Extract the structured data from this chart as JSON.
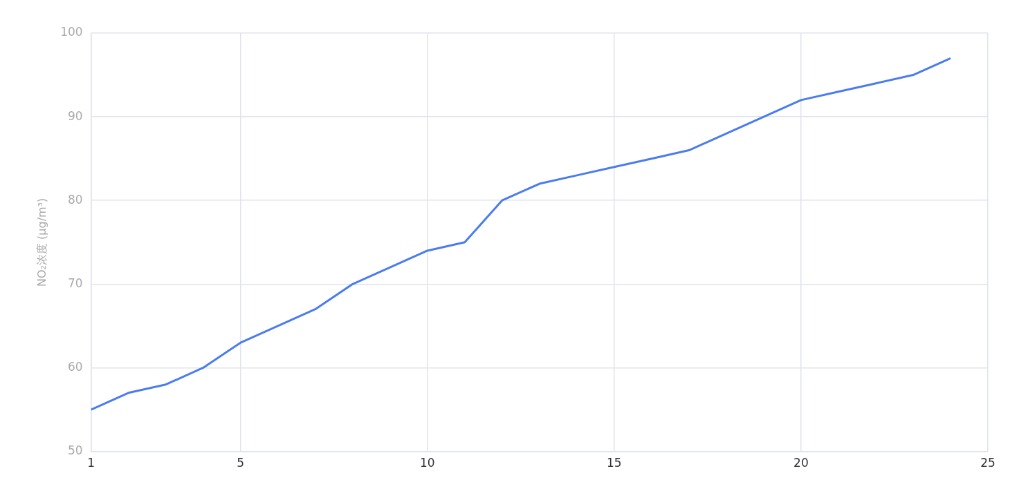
{
  "chart_data": {
    "type": "line",
    "ylabel": "NO₂浓度 (μg/m³)",
    "x": [
      1,
      2,
      3,
      4,
      5,
      6,
      7,
      8,
      9,
      10,
      11,
      12,
      13,
      14,
      15,
      16,
      17,
      18,
      19,
      20,
      21,
      22,
      23,
      24
    ],
    "series": [
      {
        "color": "#4a7cf0",
        "values": [
          55,
          57,
          58,
          60,
          63,
          65,
          67,
          70,
          72,
          74,
          75,
          80,
          82,
          83,
          84,
          85,
          86,
          88,
          90,
          92,
          93,
          94,
          95,
          97
        ]
      }
    ],
    "xlim": [
      1,
      25
    ],
    "xticks": [
      1,
      5,
      10,
      15,
      20,
      25
    ],
    "ylim": [
      50,
      100
    ],
    "yticks": [
      50,
      60,
      70,
      80,
      90,
      100
    ],
    "grid": true,
    "legend": false,
    "marker": "none",
    "line_style": "solid"
  }
}
